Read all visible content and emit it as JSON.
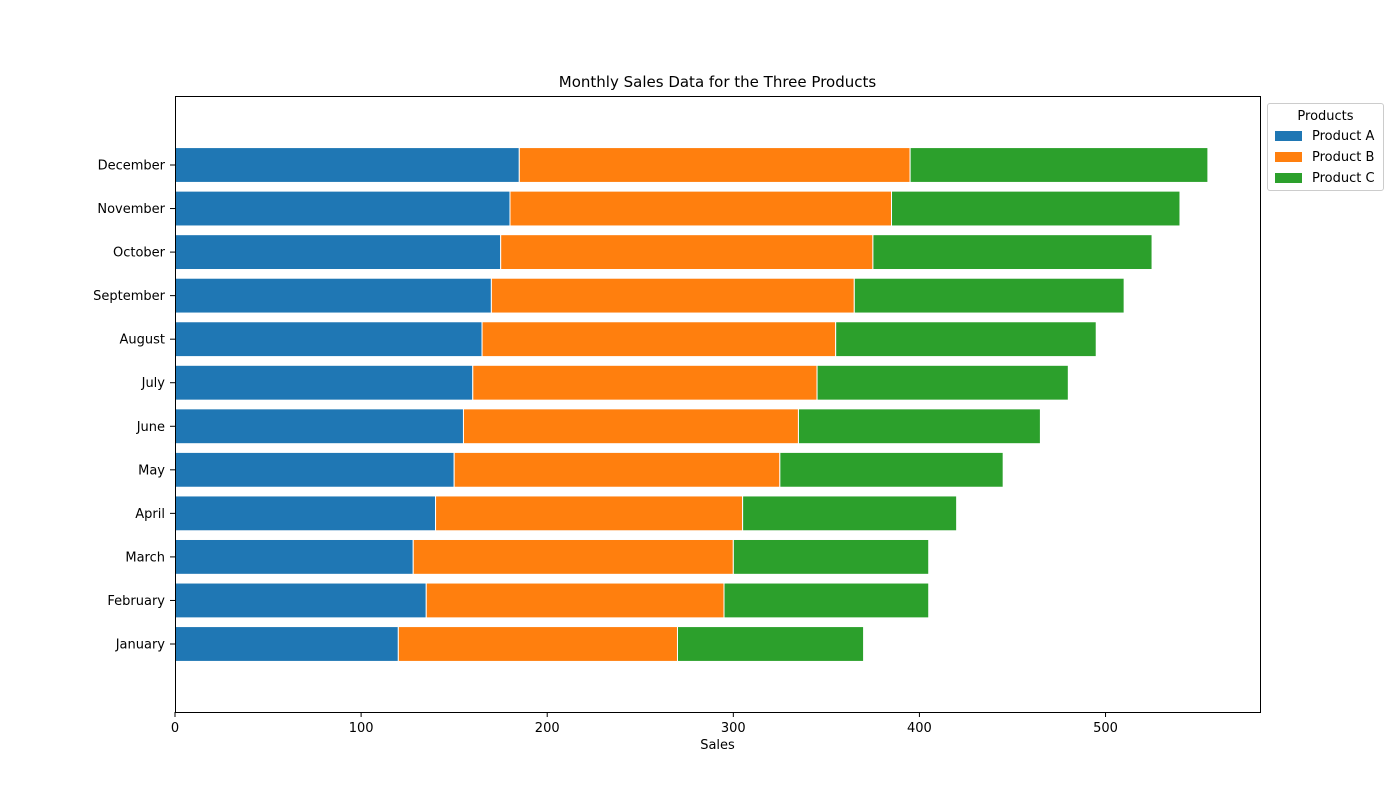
{
  "chart_data": {
    "type": "bar",
    "orientation": "horizontal",
    "stacked": true,
    "title": "Monthly Sales Data for the Three Products",
    "xlabel": "Sales",
    "ylabel": "",
    "xlim": [
      0,
      583
    ],
    "x_ticks": [
      0,
      100,
      200,
      300,
      400,
      500
    ],
    "categories": [
      "January",
      "February",
      "March",
      "April",
      "May",
      "June",
      "July",
      "August",
      "September",
      "October",
      "November",
      "December"
    ],
    "series": [
      {
        "name": "Product A",
        "color": "#1f77b4",
        "values": [
          120,
          135,
          128,
          140,
          150,
          155,
          160,
          165,
          170,
          175,
          180,
          185
        ]
      },
      {
        "name": "Product B",
        "color": "#ff7f0e",
        "values": [
          150,
          160,
          172,
          165,
          175,
          180,
          185,
          190,
          195,
          200,
          205,
          210
        ]
      },
      {
        "name": "Product C",
        "color": "#2ca02c",
        "values": [
          100,
          110,
          105,
          115,
          120,
          130,
          135,
          140,
          145,
          150,
          155,
          160
        ]
      }
    ],
    "grid": false,
    "legend": {
      "title": "Products",
      "position": "outside-top-right"
    }
  }
}
